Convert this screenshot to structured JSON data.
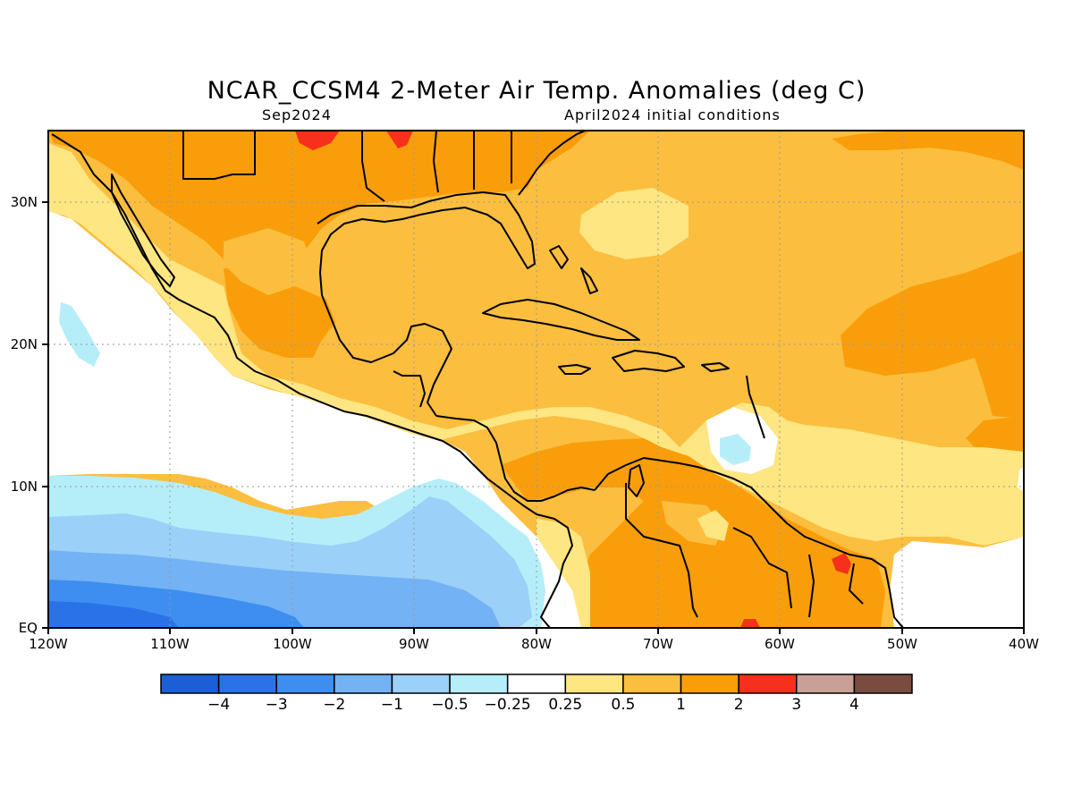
{
  "title": "NCAR_CCSM4 2-Meter Air Temp. Anomalies (deg C)",
  "subtitle_left": "Sep2024",
  "subtitle_right": "April2024 initial conditions",
  "map": {
    "lon_ticks": [
      "120W",
      "110W",
      "100W",
      "90W",
      "80W",
      "70W",
      "60W",
      "50W",
      "40W"
    ],
    "lat_ticks": [
      "30N",
      "20N",
      "10N",
      "EQ"
    ],
    "lon_range": [
      -120,
      -40
    ],
    "lat_range": [
      0,
      35
    ],
    "gridlines": "dotted"
  },
  "colorbar": {
    "colors": [
      "#1a5fd6",
      "#2a72e8",
      "#3d8ef0",
      "#72b2f5",
      "#9bd0f8",
      "#b5eef9",
      "#ffffff",
      "#fee682",
      "#fcbe3e",
      "#f99e0a",
      "#f6301a",
      "#c8a096",
      "#7a4c40"
    ],
    "labels": [
      "−4",
      "−3",
      "−2",
      "−1",
      "−0.5",
      "−0.25",
      "0.25",
      "0.5",
      "1",
      "2",
      "3",
      "4"
    ]
  }
}
